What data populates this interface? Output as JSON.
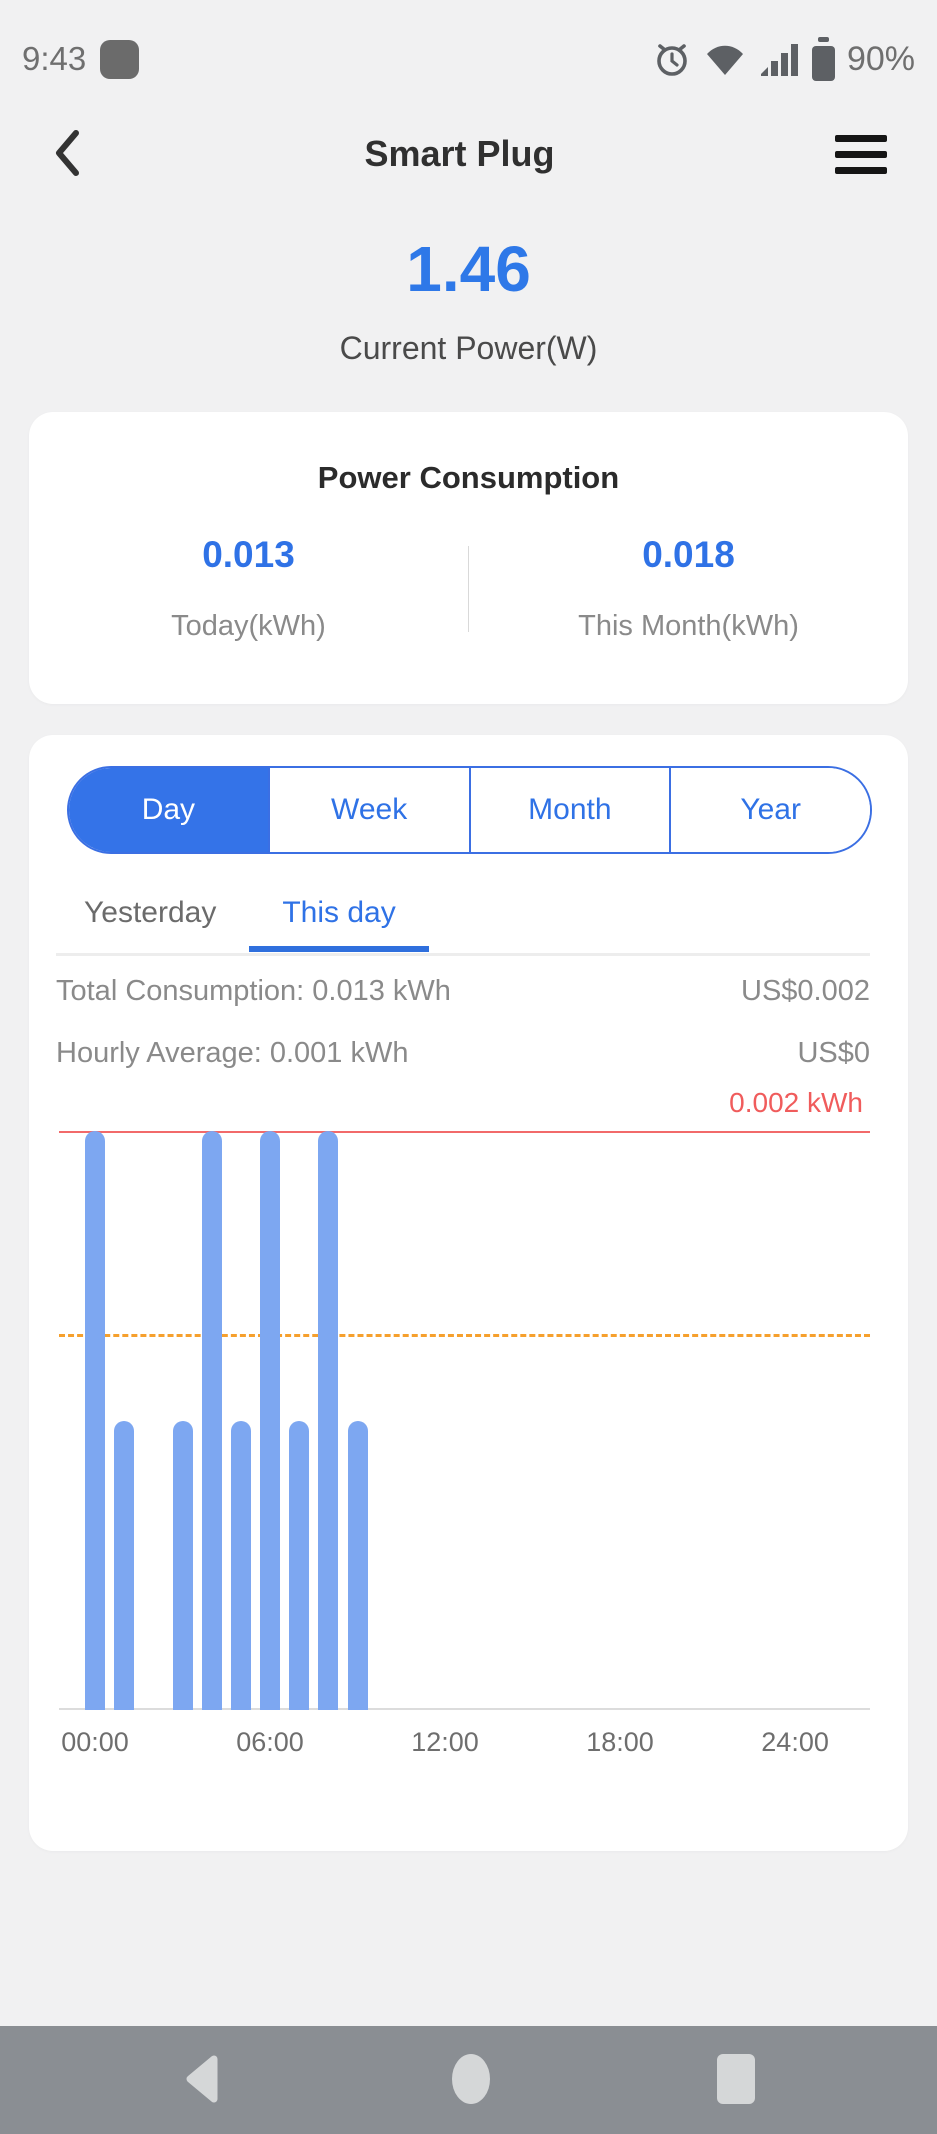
{
  "status_bar": {
    "time": "9:43",
    "battery": "90%",
    "icons": [
      "notification-app-icon",
      "alarm-icon",
      "wifi-icon",
      "cellular-signal-icon",
      "battery-icon"
    ]
  },
  "header": {
    "title": "Smart Plug"
  },
  "current_power": {
    "value": "1.46",
    "label": "Current Power(W)"
  },
  "consumption_card": {
    "title": "Power Consumption",
    "stats": [
      {
        "value": "0.013",
        "label": "Today(kWh)"
      },
      {
        "value": "0.018",
        "label": "This Month(kWh)"
      }
    ]
  },
  "chart_card": {
    "range_tabs": [
      {
        "label": "Day",
        "active": true
      },
      {
        "label": "Week",
        "active": false
      },
      {
        "label": "Month",
        "active": false
      },
      {
        "label": "Year",
        "active": false
      }
    ],
    "sub_tabs": [
      {
        "label": "Yesterday",
        "active": false
      },
      {
        "label": "This day",
        "active": true
      }
    ],
    "summary": [
      {
        "left": "Total Consumption: 0.013 kWh",
        "right": "US$0.002"
      },
      {
        "left": "Hourly Average: 0.001 kWh",
        "right": "US$0"
      }
    ]
  },
  "chart_data": {
    "type": "bar",
    "x": [
      0,
      1,
      2,
      3,
      4,
      5,
      6,
      7,
      8,
      9,
      10,
      11,
      12,
      13,
      14,
      15,
      16,
      17,
      18,
      19,
      20,
      21,
      22,
      23
    ],
    "values": [
      0.002,
      0.001,
      0,
      0.001,
      0.002,
      0.001,
      0.002,
      0.001,
      0.002,
      0.001,
      0,
      0,
      0,
      0,
      0,
      0,
      0,
      0,
      0,
      0,
      0,
      0,
      0,
      0
    ],
    "unit": "kWh",
    "ylim": [
      0,
      0.002
    ],
    "grid": false,
    "x_ticks": [
      {
        "hour": 0,
        "label": "00:00"
      },
      {
        "hour": 6,
        "label": "06:00"
      },
      {
        "hour": 12,
        "label": "12:00"
      },
      {
        "hour": 18,
        "label": "18:00"
      },
      {
        "hour": 24,
        "label": "24:00"
      }
    ],
    "limit_line": {
      "value": 0.002,
      "label": "0.002 kWh",
      "color": "#f05c5c"
    },
    "average_line": {
      "value": 0.0013,
      "style": "dashed",
      "color": "#f6a02d"
    },
    "bar_color": "#7da7f1"
  },
  "nav_bar": {
    "icons": [
      "back-icon",
      "home-icon",
      "recents-icon"
    ]
  },
  "colors": {
    "accent": "#2f72e6",
    "bar-blue": "#7da7f1",
    "limit-red": "#f05c5c",
    "avg-orange": "#f6a02d"
  }
}
